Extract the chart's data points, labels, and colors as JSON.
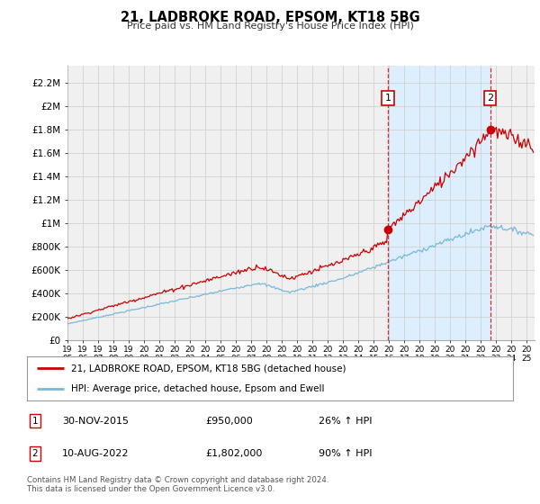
{
  "title": "21, LADBROKE ROAD, EPSOM, KT18 5BG",
  "subtitle": "Price paid vs. HM Land Registry's House Price Index (HPI)",
  "ylabel_ticks": [
    "£0",
    "£200K",
    "£400K",
    "£600K",
    "£800K",
    "£1M",
    "£1.2M",
    "£1.4M",
    "£1.6M",
    "£1.8M",
    "£2M",
    "£2.2M"
  ],
  "ytick_values": [
    0,
    200000,
    400000,
    600000,
    800000,
    1000000,
    1200000,
    1400000,
    1600000,
    1800000,
    2000000,
    2200000
  ],
  "ylim": [
    0,
    2350000
  ],
  "xlim_start": 1995.0,
  "xlim_end": 2025.5,
  "hpi_color": "#7ab8d9",
  "sale_color": "#cc0000",
  "shade_color": "#ddeeff",
  "marker1_x": 2015.92,
  "marker1_y": 950000,
  "marker2_x": 2022.61,
  "marker2_y": 1802000,
  "vline1_x": 2015.92,
  "vline2_x": 2022.61,
  "legend_label1": "21, LADBROKE ROAD, EPSOM, KT18 5BG (detached house)",
  "legend_label2": "HPI: Average price, detached house, Epsom and Ewell",
  "footnote1": "Contains HM Land Registry data © Crown copyright and database right 2024.",
  "footnote2": "This data is licensed under the Open Government Licence v3.0.",
  "table_rows": [
    {
      "num": "1",
      "date": "30-NOV-2015",
      "price": "£950,000",
      "change": "26% ↑ HPI"
    },
    {
      "num": "2",
      "date": "10-AUG-2022",
      "price": "£1,802,000",
      "change": "90% ↑ HPI"
    }
  ],
  "bg_color": "#ffffff",
  "grid_color": "#cccccc",
  "plot_bg_color": "#f0f0f0"
}
